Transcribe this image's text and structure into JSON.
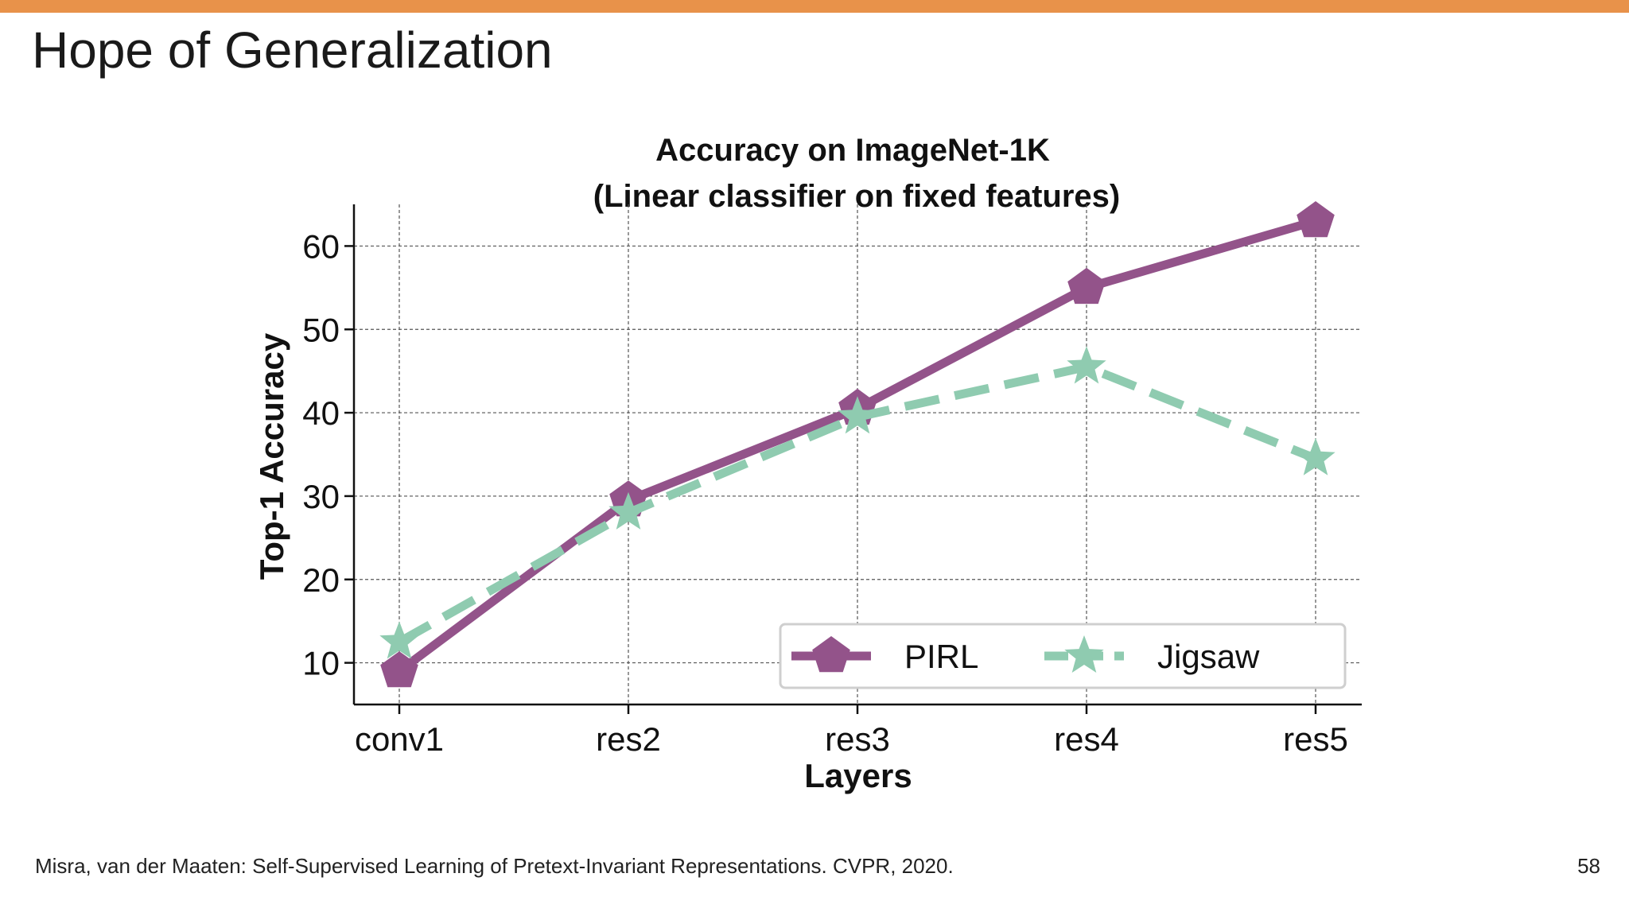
{
  "slide": {
    "title": "Hope of Generalization",
    "citation": "Misra, van der Maaten: Self-Supervised Learning of Pretext-Invariant Representations. CVPR, 2020.",
    "page_number": "58",
    "accent_color": "#e8924a"
  },
  "chart_data": {
    "type": "line",
    "title": "Accuracy on ImageNet-1K",
    "subtitle": "(Linear classifier on fixed features)",
    "xlabel": "Layers",
    "ylabel": "Top-1 Accuracy",
    "categories": [
      "conv1",
      "res2",
      "res3",
      "res4",
      "res5"
    ],
    "yticks": [
      10,
      20,
      30,
      40,
      50,
      60
    ],
    "ylim": [
      5,
      65
    ],
    "grid": true,
    "legend_position": "bottom-right",
    "series": [
      {
        "name": "PIRL",
        "values": [
          9,
          29.5,
          40.5,
          55,
          63
        ],
        "color": "#93538a",
        "marker": "pentagon-icon",
        "line_style": "solid"
      },
      {
        "name": "Jigsaw",
        "values": [
          12.5,
          28,
          39.5,
          45.5,
          34.5
        ],
        "color": "#8fcbb0",
        "marker": "star-icon",
        "line_style": "dashed"
      }
    ]
  }
}
